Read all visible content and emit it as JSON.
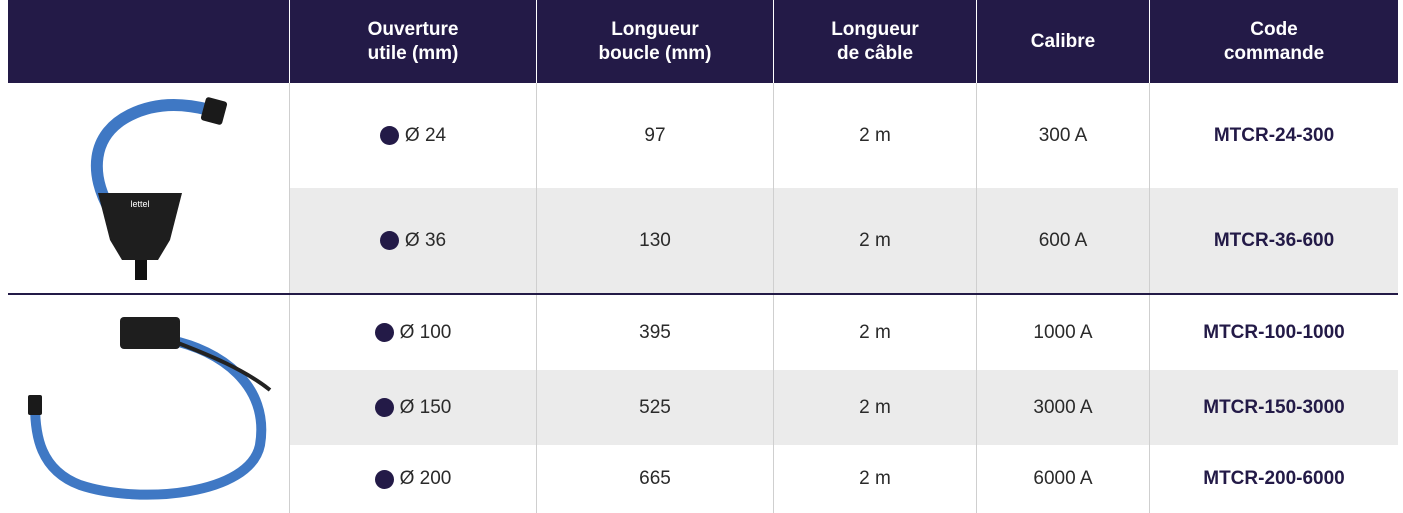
{
  "header": {
    "columns": [
      [
        "Ouverture",
        "utile (mm)"
      ],
      [
        "Longueur",
        "boucle (mm)"
      ],
      [
        "Longueur",
        "de câble"
      ],
      [
        "Calibre"
      ],
      [
        "Code",
        "commande"
      ]
    ]
  },
  "table": {
    "rows": [
      [
        "Ø 24",
        "97",
        "2 m",
        "300 A",
        "MTCR-24-300"
      ],
      [
        "Ø 36",
        "130",
        "2 m",
        "600 A",
        "MTCR-36-600"
      ],
      [
        "Ø 100",
        "395",
        "2 m",
        "1000 A",
        "MTCR-100-1000"
      ],
      [
        "Ø 150",
        "525",
        "2 m",
        "3000 A",
        "MTCR-150-3000"
      ],
      [
        "Ø 200",
        "665",
        "2 m",
        "6000 A",
        "MTCR-200-6000"
      ]
    ]
  }
}
